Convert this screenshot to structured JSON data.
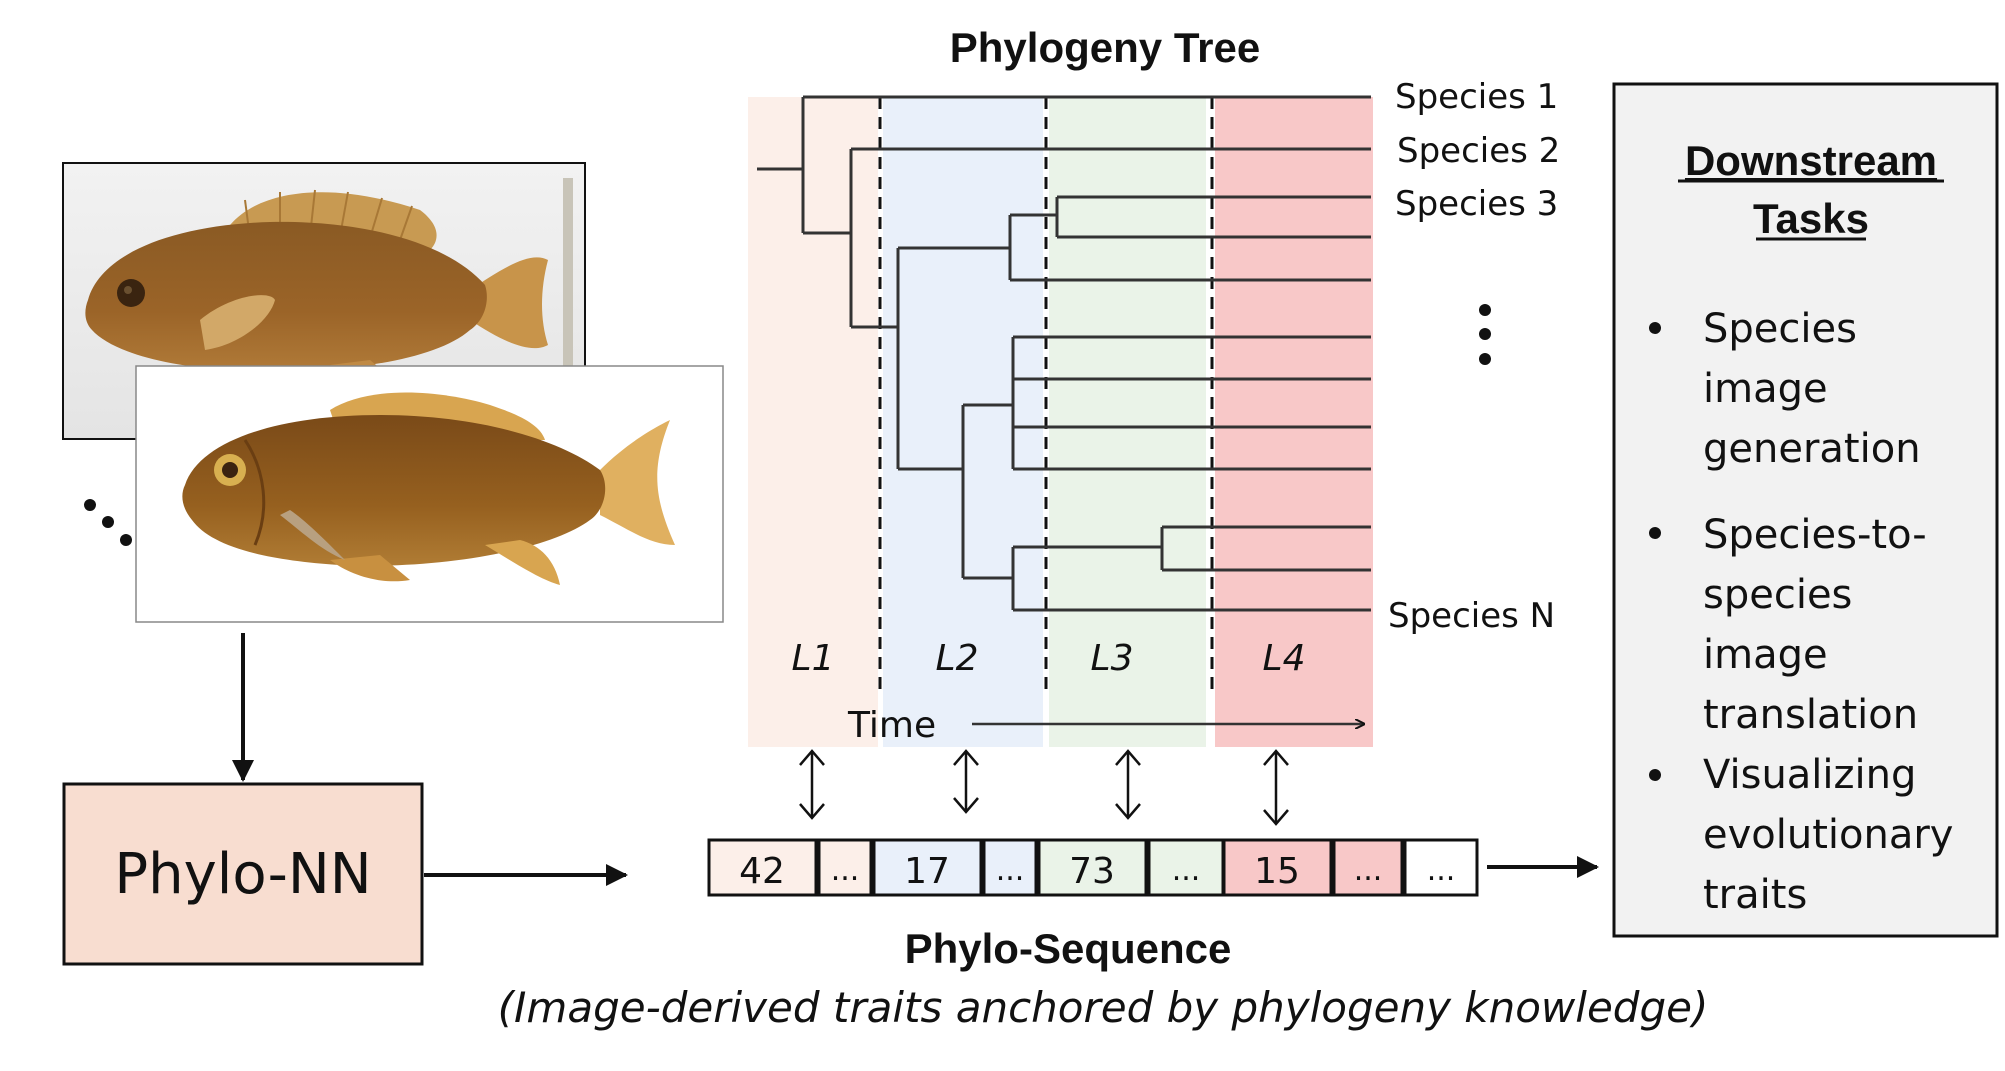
{
  "tree": {
    "title": "Phylogeny Tree",
    "species_labels": [
      "Species 1",
      "Species 2",
      "Species 3",
      "Species N"
    ],
    "level_labels": [
      "L1",
      "L2",
      "L3",
      "L4"
    ],
    "time_label": "Time",
    "level_colors": [
      "#fcefe9",
      "#e9f0fa",
      "#eaf3e8",
      "#f8c8c8"
    ]
  },
  "phylo_nn": {
    "label": "Phylo-NN",
    "fill": "#f8ddd0"
  },
  "sequence": {
    "title": "Phylo-Sequence",
    "subtitle": "(Image-derived traits anchored by phylogeny knowledge)",
    "cells": [
      "42",
      "...",
      "17",
      "...",
      "73",
      "...",
      "15",
      "...",
      "..."
    ]
  },
  "downstream": {
    "title_line1": "Downstream",
    "title_line2": "Tasks",
    "tasks": [
      [
        "Species",
        "image",
        "generation"
      ],
      [
        "Species-to-",
        "species",
        "image",
        "translation"
      ],
      [
        "Visualizing",
        "evolutionary",
        "traits"
      ]
    ]
  }
}
